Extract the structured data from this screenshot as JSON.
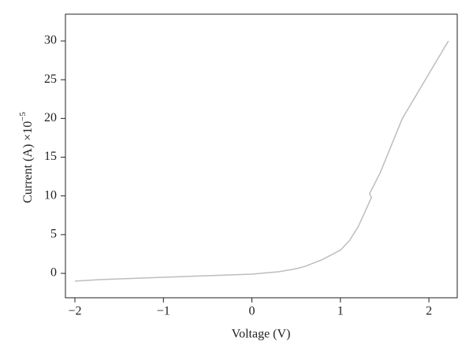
{
  "chart_data": {
    "type": "line",
    "xlabel": "Voltage (V)",
    "ylabel": "Current (A) ×10",
    "ylabel_exponent": "−5",
    "xlim": [
      -2.107,
      2.32
    ],
    "ylim": [
      -3.15,
      33.46
    ],
    "xticks": [
      {
        "value": -2,
        "label": "−2"
      },
      {
        "value": -1,
        "label": "−1"
      },
      0,
      1,
      2
    ],
    "yticks": [
      0,
      5,
      10,
      15,
      20,
      25,
      30
    ],
    "series": [
      {
        "color": "#bdbdbd",
        "x": [
          -2,
          -1.7,
          -1,
          -0.5,
          0,
          0.3,
          0.5,
          0.6,
          0.8,
          1.0,
          1.1,
          1.2,
          1.3,
          1.35,
          1.33,
          1.45,
          1.7,
          2.22
        ],
        "values": [
          -1.0,
          -0.8,
          -0.5,
          -0.3,
          -0.1,
          0.2,
          0.6,
          0.9,
          1.8,
          3.0,
          4.2,
          6.0,
          8.5,
          9.8,
          10.3,
          13,
          20,
          30
        ]
      }
    ]
  }
}
